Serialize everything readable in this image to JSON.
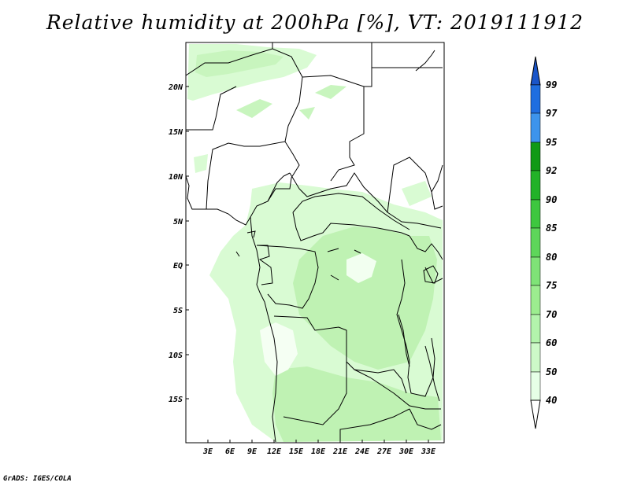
{
  "title": "Relative humidity at 200hPa [%], VT: 2019111912",
  "credit": "GrADS: IGES/COLA",
  "map": {
    "lon_ticks": [
      "3E",
      "6E",
      "9E",
      "12E",
      "15E",
      "18E",
      "21E",
      "24E",
      "27E",
      "30E",
      "33E"
    ],
    "lat_ticks": [
      "20N",
      "15N",
      "10N",
      "5N",
      "EQ",
      "5S",
      "10S",
      "15S"
    ],
    "lon_range": [
      0,
      35
    ],
    "lat_range": [
      -20,
      25
    ],
    "boundary_color": "#000000"
  },
  "colorbar": {
    "levels": [
      "40",
      "50",
      "60",
      "70",
      "75",
      "80",
      "85",
      "90",
      "92",
      "95",
      "97",
      "99"
    ],
    "colors": [
      "#ffffff",
      "#e6ffe6",
      "#cdf9c8",
      "#b3f4ac",
      "#9ced8f",
      "#7fe377",
      "#5ed65a",
      "#3ec73f",
      "#22b228",
      "#109a16",
      "#3d94ec",
      "#1f6ee0",
      "#1a55c9"
    ]
  }
}
